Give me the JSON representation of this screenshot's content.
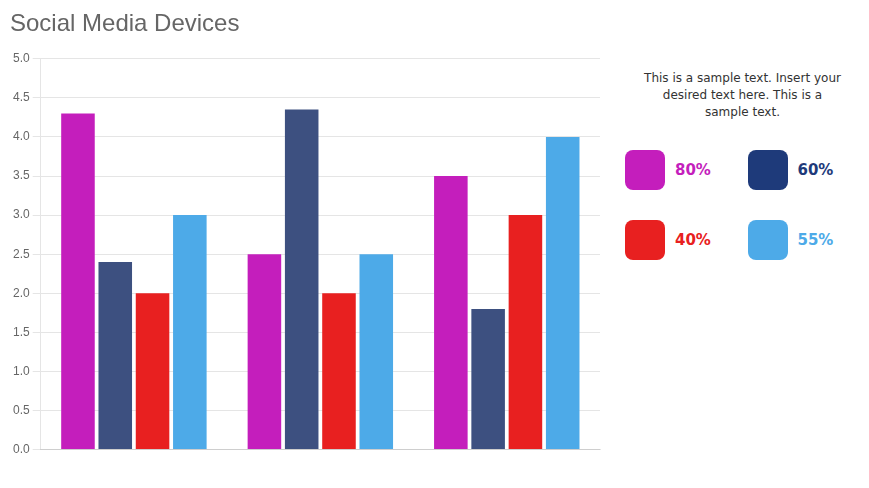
{
  "chart_data": {
    "type": "bar",
    "title": "Social Media Devices",
    "categories": [
      null,
      null,
      null
    ],
    "series": [
      {
        "color": "#c41ebc",
        "values": [
          4.3,
          2.5,
          3.5
        ]
      },
      {
        "color": "#3d5080",
        "values": [
          2.4,
          4.35,
          1.8
        ]
      },
      {
        "color": "#e82020",
        "values": [
          2.0,
          2.0,
          3.0
        ]
      },
      {
        "color": "#4daae8",
        "values": [
          3.0,
          2.5,
          4.0
        ]
      }
    ],
    "ylim": [
      0,
      5.0
    ],
    "yticks": [
      {
        "value": 0,
        "label": "0.0"
      },
      0.5,
      {
        "value": 1,
        "label": "1.0"
      },
      1.5,
      {
        "value": 2,
        "label": "2.0"
      },
      2.5,
      {
        "value": 3,
        "label": "3.0"
      },
      3.5,
      {
        "value": 4,
        "label": "4.0"
      },
      4.5,
      {
        "value": 5,
        "label": "5.0"
      }
    ],
    "grid": true,
    "annotations": [
      {
        "text": "This is a sample text. Insert your\ndesired text here. This is a\nsample text.",
        "color": "#333333"
      },
      {
        "text": "80%",
        "color": "#c41ebc"
      },
      {
        "text": "60%",
        "color": "#1e3a7a"
      },
      {
        "text": "40%",
        "color": "#e82020"
      },
      {
        "text": "55%",
        "color": "#4daae8"
      }
    ]
  }
}
